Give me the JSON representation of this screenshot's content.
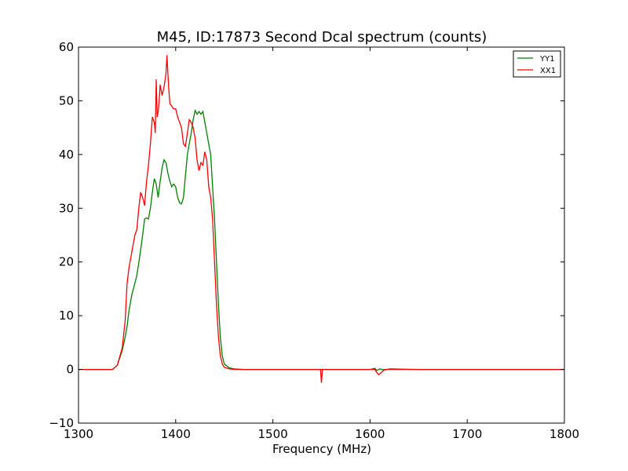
{
  "chart_data": {
    "type": "line",
    "title": "M45, ID:17873 Second Dcal spectrum (counts)",
    "xlabel": "Frequency (MHz)",
    "ylabel": "",
    "xlim": [
      1300,
      1800
    ],
    "ylim": [
      -10,
      60
    ],
    "xticks": [
      1300,
      1400,
      1500,
      1600,
      1700,
      1800
    ],
    "yticks": [
      -10,
      0,
      10,
      20,
      30,
      40,
      50,
      60
    ],
    "grid": false,
    "legend_position": "top-right",
    "series": [
      {
        "name": "YY1",
        "color": "#008000",
        "x": [
          1300,
          1330,
          1335,
          1340,
          1345,
          1348,
          1350,
          1352,
          1355,
          1358,
          1360,
          1363,
          1366,
          1368,
          1370,
          1372,
          1374,
          1376,
          1378,
          1380,
          1382,
          1384,
          1386,
          1388,
          1390,
          1392,
          1394,
          1396,
          1398,
          1400,
          1402,
          1404,
          1406,
          1408,
          1410,
          1412,
          1414,
          1416,
          1418,
          1420,
          1422,
          1424,
          1426,
          1428,
          1430,
          1432,
          1434,
          1436,
          1438,
          1440,
          1442,
          1444,
          1446,
          1448,
          1450,
          1455,
          1460,
          1470,
          1500,
          1550,
          1600,
          1605,
          1607,
          1610,
          1615,
          1620,
          1650,
          1700,
          1750,
          1800
        ],
        "y": [
          0,
          0,
          0,
          0.8,
          3.5,
          6,
          8,
          11,
          14,
          16,
          17.5,
          21,
          25,
          28,
          28.2,
          28,
          30,
          33,
          35.5,
          34.5,
          32,
          35,
          37.5,
          39,
          38.5,
          36.5,
          35,
          34,
          34.5,
          34,
          32,
          31,
          30.8,
          32,
          36,
          40,
          42,
          44,
          46.5,
          48.2,
          47.5,
          48,
          47.5,
          48,
          46,
          44,
          42,
          40,
          34,
          28,
          20,
          12,
          6,
          2.5,
          1,
          0.3,
          0.1,
          0,
          0,
          0,
          0,
          0.2,
          -0.2,
          0.1,
          -0.1,
          0.1,
          0,
          0,
          0,
          0
        ]
      },
      {
        "name": "XX1",
        "color": "#ff0000",
        "x": [
          1300,
          1330,
          1335,
          1340,
          1345,
          1348,
          1350,
          1352,
          1355,
          1358,
          1360,
          1362,
          1364,
          1366,
          1368,
          1370,
          1372,
          1374,
          1376,
          1378,
          1379,
          1380,
          1381,
          1382,
          1383,
          1384,
          1385,
          1386,
          1388,
          1390,
          1391,
          1392,
          1393,
          1394,
          1396,
          1398,
          1400,
          1402,
          1404,
          1406,
          1408,
          1410,
          1412,
          1414,
          1416,
          1418,
          1420,
          1422,
          1424,
          1426,
          1428,
          1430,
          1432,
          1434,
          1436,
          1438,
          1440,
          1442,
          1444,
          1446,
          1448,
          1450,
          1455,
          1460,
          1470,
          1500,
          1549,
          1550,
          1551,
          1600,
          1605,
          1607,
          1609,
          1612,
          1615,
          1620,
          1650,
          1700,
          1750,
          1800
        ],
        "y": [
          0,
          0,
          0,
          0.8,
          4,
          9,
          16,
          19,
          22,
          25,
          26,
          30,
          33,
          32,
          30.5,
          35,
          38,
          42,
          47,
          46,
          44,
          54,
          47,
          48,
          50,
          53,
          52,
          51,
          52.5,
          55,
          58.5,
          55,
          52,
          49.5,
          49,
          48.5,
          48.5,
          47,
          46,
          45,
          42,
          41.5,
          44,
          46.5,
          46,
          45,
          43,
          39,
          37,
          38.5,
          38,
          40.5,
          39,
          34,
          32,
          28,
          20,
          12,
          6,
          2.5,
          1,
          0.4,
          0.1,
          0,
          0,
          0,
          0,
          -2.5,
          0,
          0,
          0,
          -0.6,
          -1,
          -0.5,
          0,
          0,
          0,
          0,
          0,
          0
        ]
      }
    ]
  }
}
